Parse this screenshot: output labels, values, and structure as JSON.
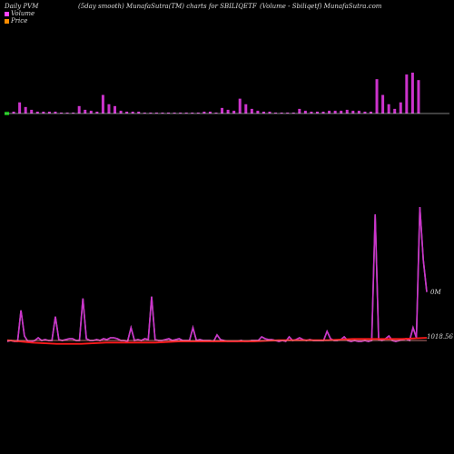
{
  "header": {
    "left": "Daily PVM",
    "center": "(5day smooth) MunafaSutra(TM) charts for SBILIQETF",
    "right": "(Volume - Sbiliqetf) MunafaSutra.com"
  },
  "legend": [
    {
      "label": "Volume",
      "color": "#ff44ff"
    },
    {
      "label": "Price",
      "color": "#ff8c00"
    }
  ],
  "colors": {
    "volume_bar": "#cc33cc",
    "volume_line": "#cc33cc",
    "price_line": "#ff1a1a",
    "baseline": "#ffffff",
    "bar_down": "#00aa00"
  },
  "chart_data": {
    "type": "bar+line",
    "title": "(5day smooth) MunafaSutra(TM) charts for SBILIQETF",
    "volume_bars": [
      2,
      2,
      12,
      7,
      4,
      2,
      2,
      2,
      2,
      1,
      1,
      1,
      8,
      4,
      3,
      2,
      20,
      10,
      8,
      3,
      2,
      2,
      2,
      1,
      1,
      1,
      1,
      1,
      1,
      1,
      1,
      1,
      1,
      2,
      2,
      1,
      6,
      4,
      3,
      16,
      10,
      5,
      3,
      2,
      2,
      1,
      1,
      1,
      1,
      5,
      3,
      2,
      2,
      2,
      3,
      3,
      3,
      4,
      3,
      3,
      2,
      2,
      37,
      20,
      10,
      5,
      12,
      42,
      44,
      36
    ],
    "volume_line": [
      1,
      2,
      1,
      1,
      35,
      7,
      1,
      1,
      2,
      5,
      2,
      3,
      2,
      2,
      28,
      3,
      2,
      3,
      4,
      4,
      2,
      2,
      48,
      4,
      2,
      2,
      3,
      2,
      4,
      3,
      5,
      5,
      4,
      2,
      2,
      1,
      16,
      2,
      3,
      2,
      4,
      3,
      50,
      3,
      2,
      2,
      3,
      4,
      2,
      3,
      4,
      2,
      2,
      2,
      16,
      2,
      3,
      2,
      2,
      2,
      1,
      8,
      3,
      2,
      1,
      1,
      1,
      1,
      2,
      1,
      1,
      2,
      2,
      2,
      6,
      4,
      3,
      3,
      2,
      1,
      2,
      1,
      6,
      2,
      3,
      5,
      3,
      2,
      3,
      2,
      2,
      2,
      2,
      12,
      4,
      2,
      2,
      3,
      6,
      2,
      1,
      2,
      1,
      1,
      2,
      1,
      2,
      140,
      3,
      2,
      4,
      7,
      2,
      1,
      2,
      3,
      4,
      2,
      16,
      5,
      148,
      90,
      55
    ],
    "price_line": [
      1018.4,
      1018.2,
      1018.1,
      1018.1,
      1018.2,
      1018.2,
      1018.2,
      1018.3,
      1018.3,
      1018.3,
      1018.3,
      1018.4,
      1018.4,
      1018.4,
      1018.5,
      1018.5,
      1018.5,
      1018.6
    ],
    "labels": {
      "volume_last": "0M",
      "price_last": "1018.56"
    }
  }
}
